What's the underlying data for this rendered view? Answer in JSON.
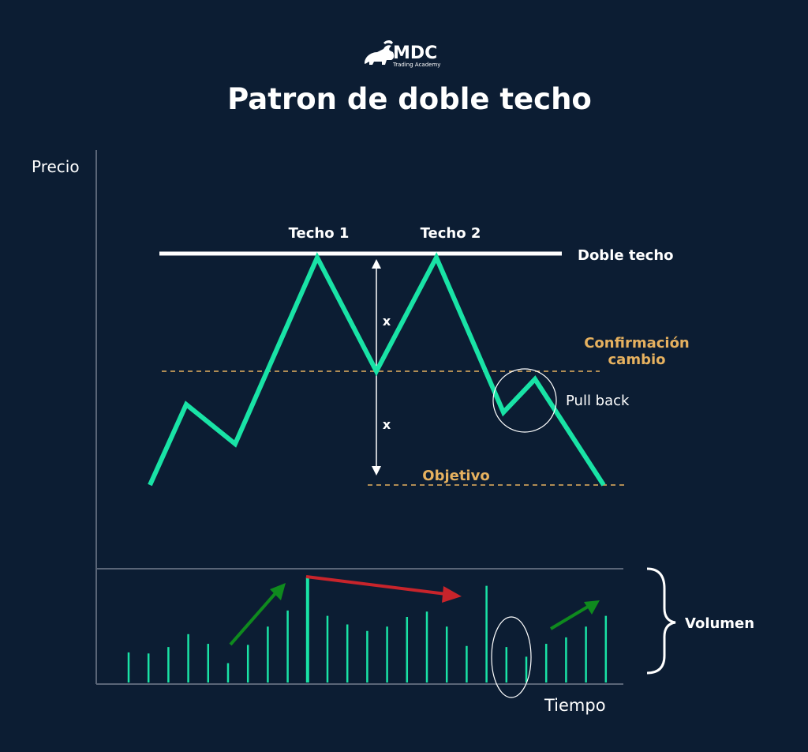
{
  "logo": {
    "name": "MDC",
    "tagline": "Trading Academy"
  },
  "title": "Patron de doble techo",
  "axes": {
    "y_label": "Precio",
    "x_label": "Tiempo"
  },
  "labels": {
    "peak1": "Techo 1",
    "peak2": "Techo 2",
    "resistance": "Doble techo",
    "confirmation_line1": "Confirmación",
    "confirmation_line2": "cambio",
    "pullback": "Pull back",
    "target": "Objetivo",
    "measure_upper": "x",
    "measure_lower": "x",
    "volume": "Volumen"
  },
  "colors": {
    "background": "#0c1d33",
    "price_line": "#19e3a6",
    "resistance_line": "#ffffff",
    "dashed_lines": "#e6b15f",
    "orange_text": "#e6b15f",
    "axis": "#5a6577",
    "up_arrow": "#0f8a1e",
    "down_arrow": "#c8242b"
  },
  "volume_bars": [
    0.28,
    0.27,
    0.33,
    0.45,
    0.36,
    0.18,
    0.35,
    0.52,
    0.67,
    0.98,
    0.62,
    0.54,
    0.48,
    0.52,
    0.61,
    0.66,
    0.52,
    0.34,
    0.9,
    0.33,
    0.24,
    0.36,
    0.42,
    0.52,
    0.62
  ]
}
